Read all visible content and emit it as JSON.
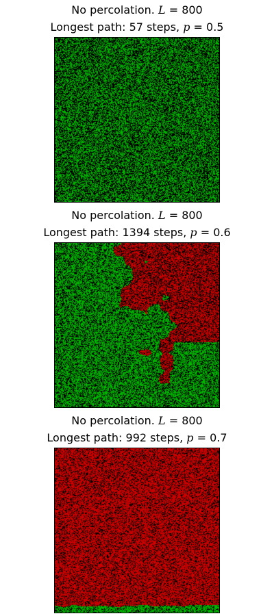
{
  "colors": {
    "background": "#000000",
    "unvisited": "#00b400",
    "visited": "#c80000"
  },
  "chart_data": [
    {
      "type": "heatmap",
      "status": "No percolation.",
      "L_label": "L",
      "L": 800,
      "path_prefix": "Longest path:",
      "steps": 57,
      "steps_unit": "steps,",
      "p_label": "p",
      "p": 0.5,
      "description_of_cells": "site lattice; green = open site, red = reached by path, black = closed"
    },
    {
      "type": "heatmap",
      "status": "No percolation.",
      "L_label": "L",
      "L": 800,
      "path_prefix": "Longest path:",
      "steps": 1394,
      "steps_unit": "steps,",
      "p_label": "p",
      "p": 0.6
    },
    {
      "type": "heatmap",
      "status": "No percolation.",
      "L_label": "L",
      "L": 800,
      "path_prefix": "Longest path:",
      "steps": 992,
      "steps_unit": "steps,",
      "p_label": "p",
      "p": 0.7
    }
  ]
}
